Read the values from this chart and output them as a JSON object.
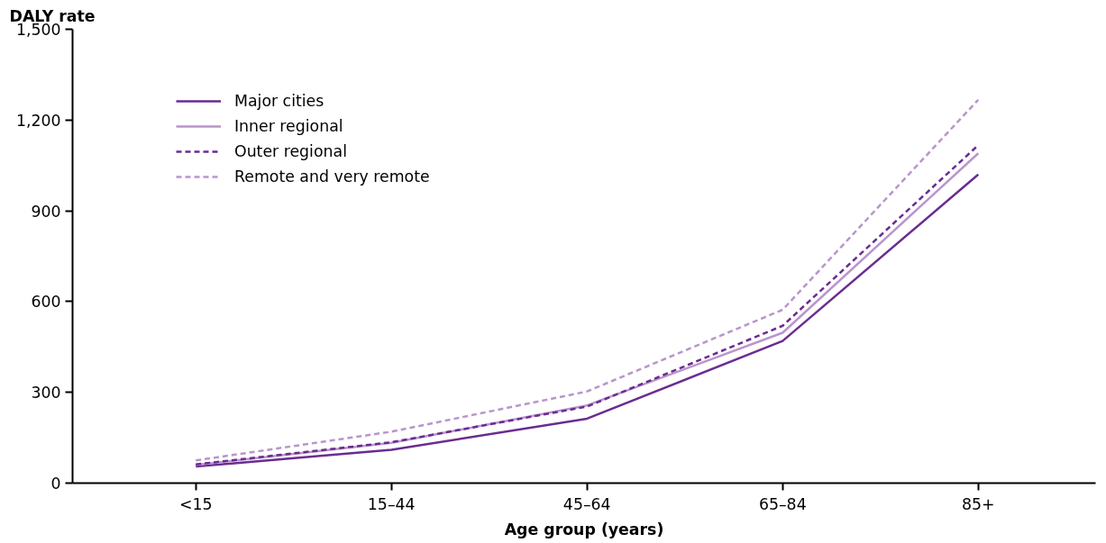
{
  "chart_data": {
    "type": "line",
    "ylabel": "DALY rate",
    "xlabel": "Age group (years)",
    "categories": [
      "<15",
      "15–44",
      "45–64",
      "65–84",
      "85+"
    ],
    "ylim": [
      0,
      1500
    ],
    "yticks": [
      {
        "value": 0,
        "label": "0"
      },
      {
        "value": 300,
        "label": "300"
      },
      {
        "value": 600,
        "label": "600"
      },
      {
        "value": 900,
        "label": "900"
      },
      {
        "value": 1200,
        "label": "1,200"
      },
      {
        "value": 1500,
        "label": "1,500"
      }
    ],
    "grid": false,
    "legend": "top left",
    "series": [
      {
        "name": "Major cities",
        "color": "#6a2c91",
        "line_style": "solid",
        "values": [
          55,
          110,
          213,
          470,
          1020
        ]
      },
      {
        "name": "Inner regional",
        "color": "#b995cc",
        "line_style": "solid",
        "values": [
          60,
          133,
          257,
          497,
          1090
        ]
      },
      {
        "name": "Outer regional",
        "color": "#6a2c91",
        "line_style": "dashed",
        "values": [
          62,
          135,
          253,
          520,
          1117
        ]
      },
      {
        "name": "Remote and very remote",
        "color": "#b995cc",
        "line_style": "dashed",
        "values": [
          75,
          170,
          303,
          573,
          1267
        ]
      }
    ]
  }
}
